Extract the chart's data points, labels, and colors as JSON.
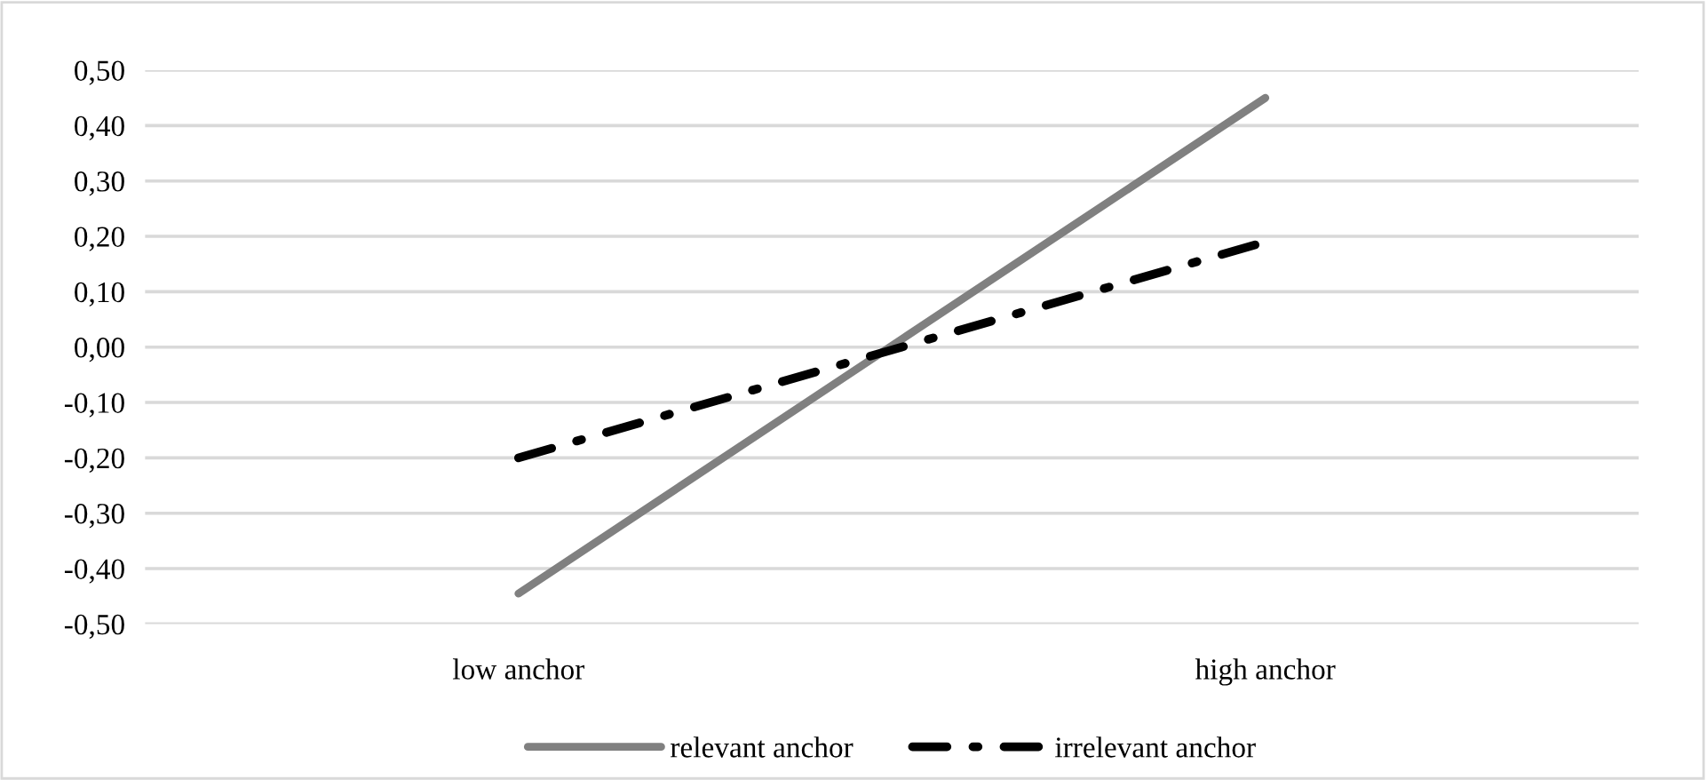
{
  "chart_data": {
    "type": "line",
    "categories": [
      "low anchor",
      "high anchor"
    ],
    "series": [
      {
        "name": "relevant anchor",
        "color": "#808080",
        "values": [
          -0.445,
          0.45
        ],
        "line_style": "solid"
      },
      {
        "name": "irrelevant anchor",
        "color": "#000000",
        "values": [
          -0.2,
          0.19
        ],
        "line_style": "dashdot"
      }
    ],
    "ylim": [
      -0.5,
      0.5
    ],
    "yticks": [
      {
        "value": -0.5,
        "label": "-0,50"
      },
      {
        "value": -0.4,
        "label": "-0,40"
      },
      {
        "value": -0.3,
        "label": "-0,30"
      },
      {
        "value": -0.2,
        "label": "-0,20"
      },
      {
        "value": -0.1,
        "label": "-0,10"
      },
      {
        "value": 0,
        "label": "0,00"
      },
      {
        "value": 0.1,
        "label": "0,10"
      },
      {
        "value": 0.2,
        "label": "0,20"
      },
      {
        "value": 0.3,
        "label": "0,30"
      },
      {
        "value": 0.4,
        "label": "0,40"
      },
      {
        "value": 0.5,
        "label": "0,50"
      }
    ],
    "grid": "y",
    "legend": "bottom",
    "marker": "none"
  }
}
